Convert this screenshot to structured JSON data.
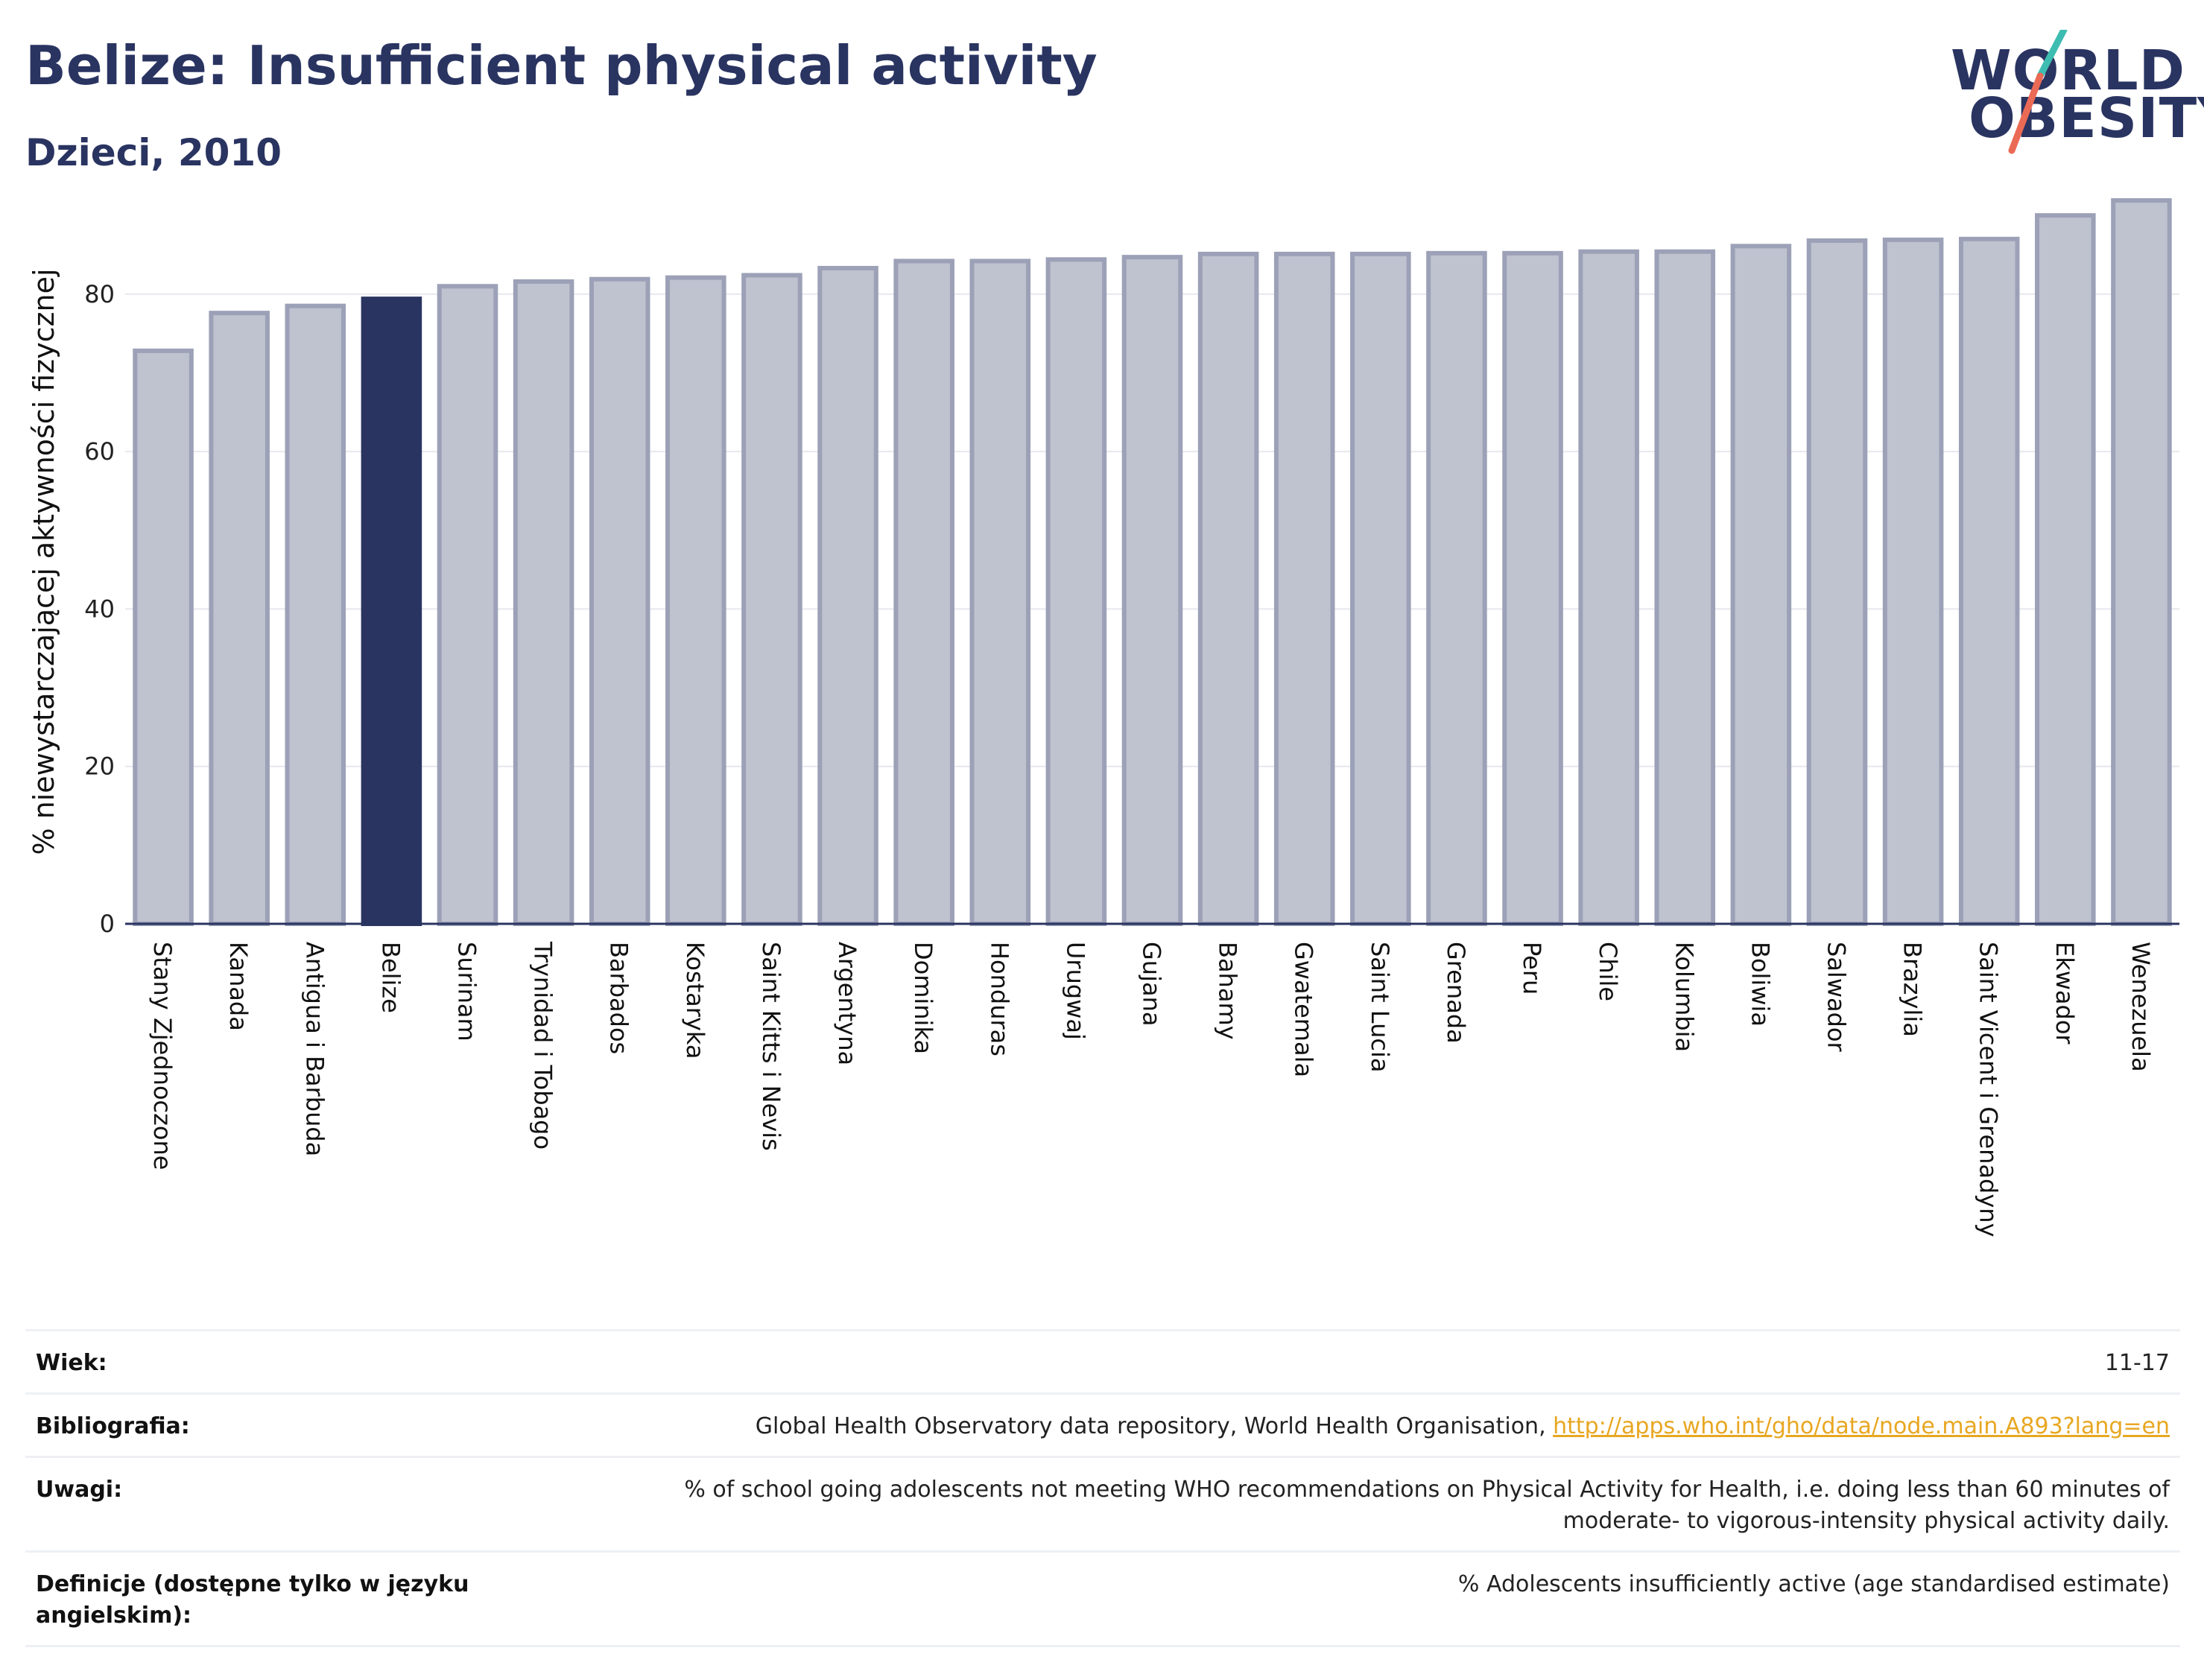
{
  "header": {
    "title": "Belize: Insufficient physical activity",
    "subtitle": "Dzieci, 2010"
  },
  "logo": {
    "line1": "WORLD",
    "line2": "OBESITY"
  },
  "colors": {
    "highlight": "#2a3461",
    "bar": "#bfc2cf",
    "bar_stroke": "#9ca1b7",
    "accent_teal": "#3dbdb2",
    "accent_coral": "#ea6a56"
  },
  "chart_data": {
    "type": "bar",
    "title": "Belize: Insufficient physical activity",
    "subtitle": "Dzieci, 2010",
    "xlabel": "",
    "ylabel": "% niewystarczającej aktywności fizycznej",
    "ylim": [
      0,
      92
    ],
    "yticks": [
      0,
      20,
      40,
      60,
      80
    ],
    "grid": true,
    "highlight": "Belize",
    "categories": [
      "Stany Zjednoczone",
      "Kanada",
      "Antigua i Barbuda",
      "Belize",
      "Surinam",
      "Trynidad i Tobago",
      "Barbados",
      "Kostaryka",
      "Saint Kitts i Nevis",
      "Argentyna",
      "Dominika",
      "Honduras",
      "Urugwaj",
      "Gujana",
      "Bahamy",
      "Gwatemala",
      "Saint Lucia",
      "Grenada",
      "Peru",
      "Chile",
      "Kolumbia",
      "Boliwia",
      "Salwador",
      "Brazylia",
      "Saint Vicent i Grenadyny",
      "Ekwador",
      "Wenezuela"
    ],
    "values": [
      72.8,
      77.6,
      78.5,
      79.4,
      81.0,
      81.6,
      81.9,
      82.1,
      82.4,
      83.3,
      84.2,
      84.2,
      84.4,
      84.7,
      85.1,
      85.1,
      85.1,
      85.2,
      85.2,
      85.4,
      85.4,
      86.1,
      86.8,
      86.9,
      87.0,
      90.0,
      91.9
    ]
  },
  "meta": [
    {
      "key": "Wiek:",
      "value": "11-17"
    },
    {
      "key": "Bibliografia:",
      "value": "Global Health Observatory data repository, World Health Organisation, ",
      "link": "http://apps.who.int/gho/data/node.main.A893?lang=en"
    },
    {
      "key": "Uwagi:",
      "value": "% of school going adolescents not meeting WHO recommendations on Physical Activity for Health, i.e. doing less than 60 minutes of moderate- to vigorous-intensity physical activity daily."
    },
    {
      "key": "Definicje (dostępne tylko w języku angielskim):",
      "value": "% Adolescents insufficiently active (age standardised estimate)"
    }
  ]
}
